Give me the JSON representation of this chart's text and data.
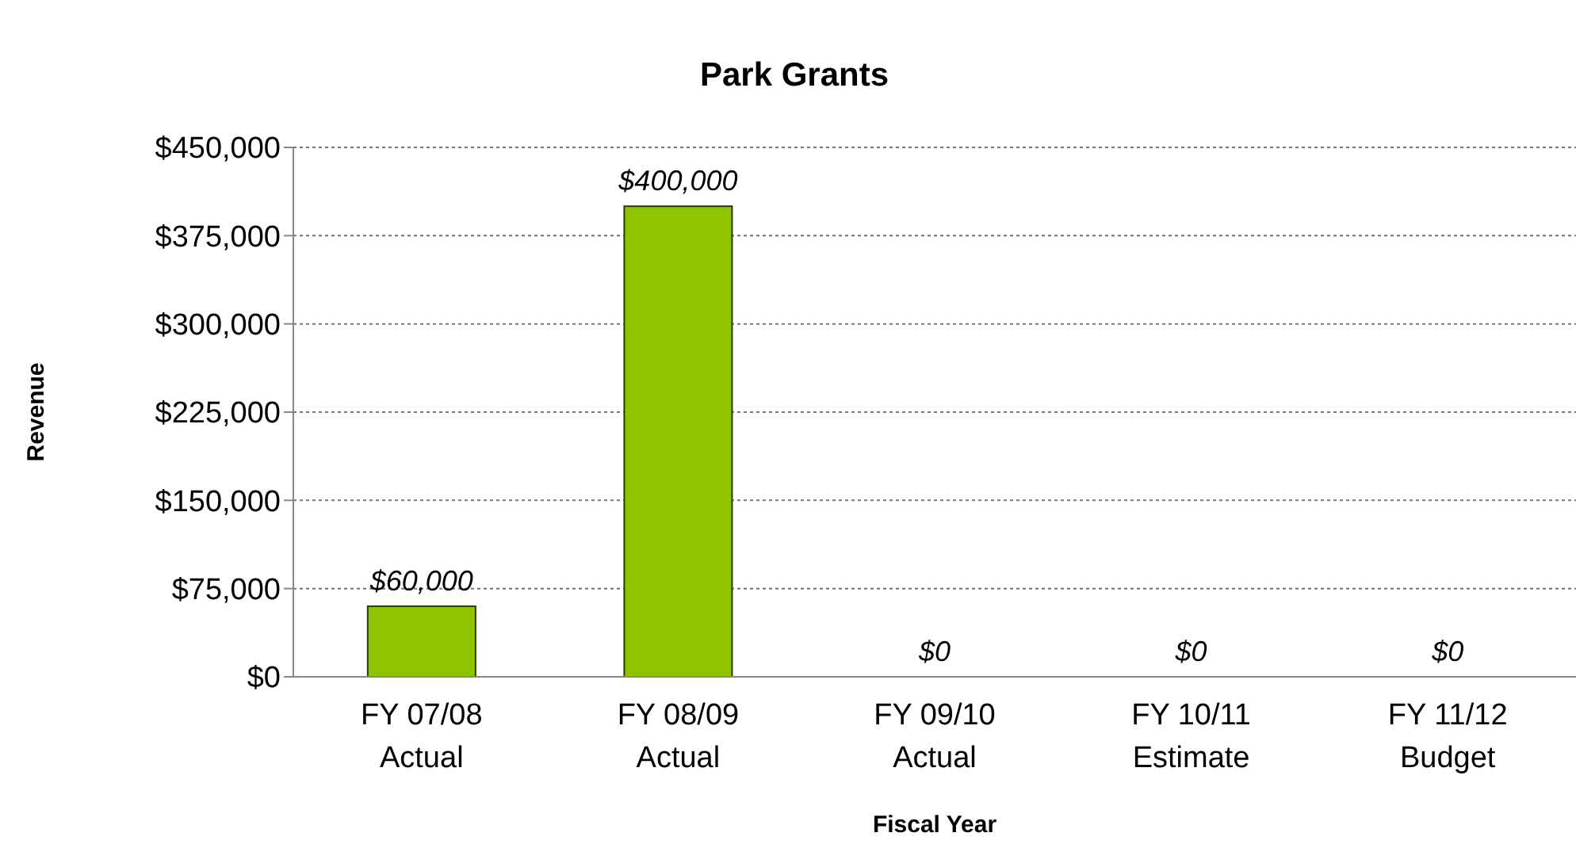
{
  "chart_data": {
    "type": "bar",
    "title": "Park Grants",
    "xlabel": "Fiscal Year",
    "ylabel": "Revenue",
    "categories": [
      "FY 07/08\nActual",
      "FY 08/09\nActual",
      "FY 09/10\nActual",
      "FY 10/11\nEstimate",
      "FY 11/12\nBudget"
    ],
    "values": [
      60000,
      400000,
      0,
      0,
      0
    ],
    "value_labels": [
      "$60,000",
      "$400,000",
      "$0",
      "$0",
      "$0"
    ],
    "color": "#8fc400",
    "ylim": [
      0,
      450000
    ],
    "yticks": [
      {
        "value": 0,
        "label": "$0"
      },
      {
        "value": 75000,
        "label": "$75,000"
      },
      {
        "value": 150000,
        "label": "$150,000"
      },
      {
        "value": 225000,
        "label": "$225,000"
      },
      {
        "value": 300000,
        "label": "$300,000"
      },
      {
        "value": 375000,
        "label": "$375,000"
      },
      {
        "value": 450000,
        "label": "$450,000"
      }
    ],
    "grid": "y",
    "legend": false
  }
}
